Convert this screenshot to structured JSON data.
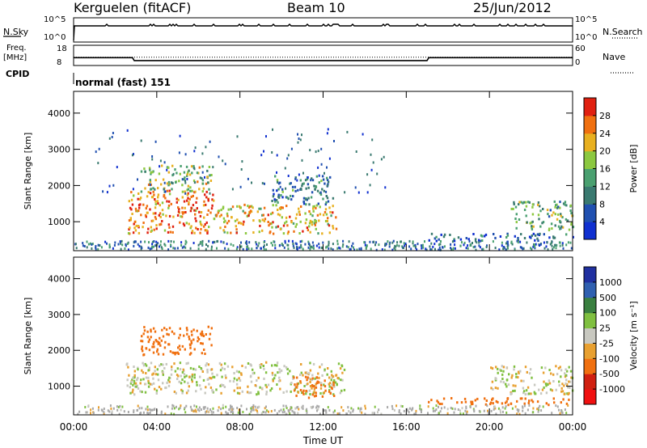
{
  "header": {
    "station": "Kerguelen (fitACF)",
    "beam": "Beam 10",
    "date": "25/Jun/2012"
  },
  "panel_labels": {
    "nsky": "N.Sky",
    "nsearch": "N.Search",
    "freq": "Freq.",
    "freq_unit": "[MHz]",
    "nave": "Nave",
    "cpid": "CPID",
    "cpid_value": "normal (fast) 151"
  },
  "colors": {
    "power_scale": [
      "#1030d0",
      "#2050b0",
      "#3a7a70",
      "#4aa070",
      "#8cc840",
      "#e8b020",
      "#f07010",
      "#e02010"
    ],
    "velocity_scale": [
      "#2030a0",
      "#3060b0",
      "#3a8040",
      "#80c040",
      "#c8c8c0",
      "#e8a030",
      "#f07010",
      "#d02010",
      "#f01010"
    ],
    "ground_scatter": "#a8a8a8"
  },
  "chart_data": [
    {
      "type": "line",
      "name": "noise-panel",
      "series": [
        {
          "name": "N.Sky",
          "left_axis_ticks": [
            "10^5",
            "10^0"
          ]
        },
        {
          "name": "N.Search",
          "right_axis_ticks": [
            "10^5",
            "10^0"
          ]
        }
      ]
    },
    {
      "type": "line",
      "name": "frequency-panel",
      "left_axis_ticks": [
        "18",
        "8"
      ],
      "right_axis_ticks": [
        "60",
        "0"
      ],
      "series": [
        {
          "name": "Freq.",
          "x": [
            "00:00",
            "02:50",
            "02:55",
            "17:00",
            "17:05",
            "24:00"
          ],
          "y": [
            11.8,
            11.8,
            10.2,
            10.2,
            11.8,
            11.8
          ]
        },
        {
          "name": "Nave",
          "x": [
            "00:00",
            "24:00"
          ],
          "y": [
            24,
            24
          ]
        }
      ]
    },
    {
      "type": "heatmap",
      "name": "power-panel",
      "ylabel": "Slant Range [km]",
      "ylim": [
        200,
        4600
      ],
      "yticks": [
        "1000",
        "2000",
        "3000",
        "4000"
      ],
      "colorbar_label": "Power [dB]",
      "colorbar_ticks": [
        "4",
        "8",
        "12",
        "16",
        "20",
        "24",
        "28"
      ],
      "regions": [
        {
          "t0": 2.6,
          "t1": 6.7,
          "r0": 700,
          "r1": 1900,
          "level": 26
        },
        {
          "t0": 6.7,
          "t1": 12.6,
          "r0": 700,
          "r1": 1500,
          "level": 22
        },
        {
          "t0": 3.2,
          "t1": 6.6,
          "r0": 1850,
          "r1": 2600,
          "level": 18
        },
        {
          "t0": 9.5,
          "t1": 12.5,
          "r0": 1500,
          "r1": 2300,
          "level": 10
        },
        {
          "t0": 17.0,
          "t1": 24.0,
          "r0": 500,
          "r1": 700,
          "level": 6
        },
        {
          "t0": 21.0,
          "t1": 24.0,
          "r0": 800,
          "r1": 1600,
          "level": 14
        }
      ]
    },
    {
      "type": "heatmap",
      "name": "velocity-panel",
      "xlabel": "Time UT",
      "ylabel": "Slant Range [km]",
      "xticks": [
        "00:00",
        "04:00",
        "08:00",
        "12:00",
        "16:00",
        "20:00",
        "00:00"
      ],
      "ylim": [
        200,
        4600
      ],
      "yticks": [
        "1000",
        "2000",
        "3000",
        "4000"
      ],
      "colorbar_label": "Velocity [m s⁻¹]",
      "colorbar_ticks": [
        "1000",
        "500",
        "100",
        "25",
        "-25",
        "-100",
        "-500",
        "-1000"
      ],
      "regions": [
        {
          "t0": 3.2,
          "t1": 6.6,
          "r0": 1900,
          "r1": 2700,
          "level": -300
        },
        {
          "t0": 2.5,
          "t1": 13.0,
          "r0": 800,
          "r1": 1700,
          "level": 0
        },
        {
          "t0": 10.5,
          "t1": 12.5,
          "r0": 700,
          "r1": 1300,
          "level": -150
        },
        {
          "t0": 17.0,
          "t1": 24.0,
          "r0": 500,
          "r1": 700,
          "level": -200
        },
        {
          "t0": 20.0,
          "t1": 24.0,
          "r0": 800,
          "r1": 1600,
          "level": 0
        }
      ]
    }
  ]
}
